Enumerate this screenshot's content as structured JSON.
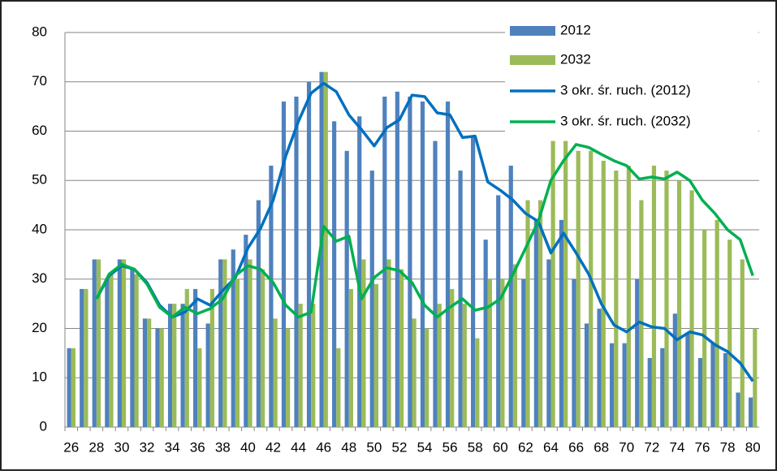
{
  "chart_data": {
    "type": "bar",
    "categories": [
      "26",
      null,
      "28",
      null,
      "30",
      null,
      "32",
      null,
      "34",
      null,
      "36",
      null,
      "38",
      null,
      "40",
      null,
      "42",
      null,
      "44",
      null,
      "46",
      null,
      "48",
      null,
      "50",
      null,
      "52",
      null,
      "54",
      null,
      "56",
      null,
      "58",
      null,
      "60",
      null,
      "62",
      null,
      "64",
      null,
      "66",
      null,
      "68",
      null,
      "70",
      null,
      "72",
      null,
      "74",
      null,
      "76",
      null,
      "78",
      null,
      "80"
    ],
    "series": [
      {
        "name": "2012",
        "type": "bar",
        "color": "#4f81bd",
        "values": [
          16,
          28,
          34,
          30,
          34,
          32,
          22,
          20,
          25,
          25,
          28,
          21,
          34,
          36,
          39,
          46,
          53,
          66,
          67,
          70,
          72,
          62,
          56,
          63,
          52,
          67,
          68,
          67,
          66,
          58,
          66,
          52,
          59,
          38,
          47,
          53,
          30,
          42,
          34,
          42,
          30,
          21,
          24,
          17,
          17,
          30,
          14,
          16,
          23,
          19,
          14,
          17,
          15,
          7,
          6
        ]
      },
      {
        "name": "2032",
        "type": "bar",
        "color": "#9bbb59",
        "values": [
          16,
          28,
          34,
          31,
          34,
          31,
          22,
          20,
          25,
          28,
          16,
          28,
          34,
          30,
          34,
          32,
          22,
          20,
          25,
          25,
          72,
          16,
          28,
          34,
          29,
          34,
          32,
          22,
          20,
          25,
          28,
          25,
          18,
          30,
          30,
          33,
          46,
          46,
          58,
          58,
          56,
          56,
          54,
          52,
          53,
          46,
          53,
          52,
          50,
          48,
          40,
          42,
          38,
          34,
          20
        ]
      },
      {
        "name": "3 okr. śr. ruch. (2012)",
        "type": "line",
        "color": "#0070c0",
        "values": [
          null,
          null,
          26,
          30.7,
          32.7,
          32,
          29.3,
          24.7,
          22.3,
          23.3,
          26,
          24.7,
          27.7,
          30.3,
          36.3,
          40.3,
          46,
          55,
          62,
          67.7,
          69.7,
          68,
          63.3,
          60.3,
          57,
          60.7,
          62.3,
          67.3,
          67,
          63.7,
          63.3,
          58.7,
          59,
          49.7,
          48,
          46,
          43.3,
          41.7,
          35.3,
          39.3,
          35.3,
          31,
          25,
          20.7,
          19.3,
          21.3,
          20.3,
          20,
          17.7,
          19.3,
          18.7,
          16.7,
          15.3,
          13,
          9.3
        ]
      },
      {
        "name": "3 okr. śr. ruch. (2032)",
        "type": "line",
        "color": "#00b050",
        "values": [
          null,
          null,
          26,
          31,
          33,
          32,
          29,
          24.3,
          22.3,
          24.3,
          23,
          24,
          26,
          30.7,
          32.7,
          32,
          29.3,
          24.7,
          22.3,
          23.3,
          40.7,
          37.7,
          38.7,
          26,
          30.3,
          32.3,
          31.7,
          29.3,
          24.7,
          22.3,
          24.3,
          26,
          23.7,
          24.3,
          26,
          31,
          36.3,
          41.7,
          50,
          54,
          57.3,
          56.7,
          55.3,
          54,
          53,
          50.3,
          50.7,
          50.3,
          51.7,
          50,
          46,
          43.3,
          40,
          38,
          30.7
        ]
      }
    ],
    "ylim": [
      0,
      80
    ],
    "yticks": [
      0,
      10,
      20,
      30,
      40,
      50,
      60,
      70,
      80
    ],
    "grid": true,
    "legend": "top-right"
  }
}
